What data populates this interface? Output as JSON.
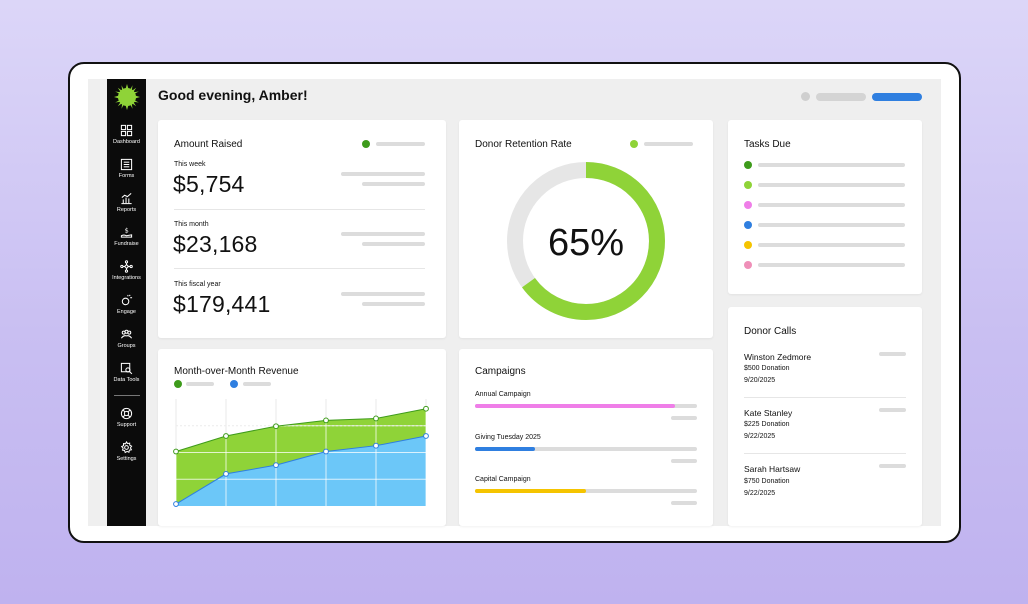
{
  "greeting": "Good evening, Amber!",
  "sidebar": {
    "items": [
      {
        "label": "Dashboard",
        "icon": "dashboard-icon"
      },
      {
        "label": "Forms",
        "icon": "forms-icon"
      },
      {
        "label": "Reports",
        "icon": "reports-icon"
      },
      {
        "label": "Fundraise",
        "icon": "fundraise-icon"
      },
      {
        "label": "Integrations",
        "icon": "integrations-icon"
      },
      {
        "label": "Engage",
        "icon": "engage-icon"
      },
      {
        "label": "Groups",
        "icon": "groups-icon"
      },
      {
        "label": "Data Tools",
        "icon": "data-tools-icon"
      }
    ],
    "bottom": [
      {
        "label": "Support",
        "icon": "support-icon"
      },
      {
        "label": "Settings",
        "icon": "settings-icon"
      }
    ]
  },
  "amount_raised": {
    "title": "Amount Raised",
    "rows": [
      {
        "label": "This week",
        "value": "$5,754"
      },
      {
        "label": "This month",
        "value": "$23,168"
      },
      {
        "label": "This fiscal year",
        "value": "$179,441"
      }
    ]
  },
  "retention": {
    "title": "Donor Retention Rate",
    "value_text": "65%",
    "percent": 65
  },
  "tasks": {
    "title": "Tasks Due",
    "colors": [
      "#3e9b1b",
      "#8fd338",
      "#ef7ee8",
      "#2f7fe0",
      "#f5c400",
      "#ef8fb8"
    ]
  },
  "donor_calls": {
    "title": "Donor Calls",
    "items": [
      {
        "name": "Winston Zedmore",
        "amount": "$500 Donation",
        "date": "9/20/2025"
      },
      {
        "name": "Kate Stanley",
        "amount": "$225 Donation",
        "date": "9/22/2025"
      },
      {
        "name": "Sarah Hartsaw",
        "amount": "$750 Donation",
        "date": "9/22/2025"
      }
    ]
  },
  "revenue": {
    "title": "Month-over-Month Revenue"
  },
  "campaigns": {
    "title": "Campaigns",
    "items": [
      {
        "name": "Annual Campaign",
        "progress": 0.9,
        "color": "#ef7ee8"
      },
      {
        "name": "Giving Tuesday 2025",
        "progress": 0.27,
        "color": "#2f7fe0"
      },
      {
        "name": "Capital Campaign",
        "progress": 0.5,
        "color": "#f5c400"
      }
    ]
  },
  "colors": {
    "green_dark": "#3e9b1b",
    "green": "#8fd338",
    "blue": "#2f7fe0",
    "blue_fill": "#6cc7f8"
  },
  "chart_data": {
    "type": "area",
    "title": "Month-over-Month Revenue",
    "x": [
      1,
      2,
      3,
      4,
      5,
      6
    ],
    "series": [
      {
        "name": "",
        "color": "#8fd338",
        "values": [
          56,
          72,
          82,
          88,
          90,
          100
        ]
      },
      {
        "name": "",
        "color": "#6cc7f8",
        "values": [
          2,
          33,
          42,
          56,
          62,
          72
        ]
      }
    ],
    "ylim": [
      0,
      110
    ],
    "xlabel": "",
    "ylabel": "",
    "grid": true
  }
}
